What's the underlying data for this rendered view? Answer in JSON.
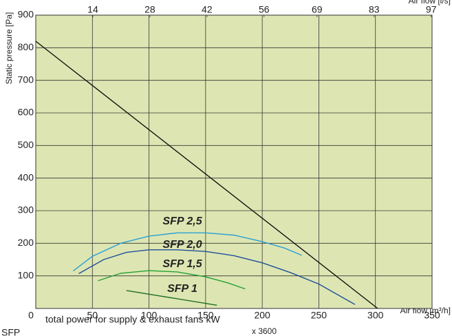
{
  "chart_data": {
    "type": "line",
    "y_label": "Static pressure [Pa]",
    "x_label": "Air flow [m³/h]",
    "x2_label": "Air flow [l/s]",
    "formula": {
      "lhs": "SFP",
      "numerator": "total power for supply & exhaust fans kW",
      "factor": "x 3600"
    },
    "xlim": [
      0,
      350
    ],
    "xticks": [
      0,
      50,
      100,
      150,
      200,
      250,
      300,
      350
    ],
    "x2lim": [
      0,
      97.22
    ],
    "x2ticks": [
      14,
      28,
      42,
      56,
      69,
      83,
      97
    ],
    "ylim": [
      0,
      900
    ],
    "yticks": [
      100,
      200,
      300,
      400,
      500,
      600,
      700,
      800,
      900
    ],
    "grid": true,
    "background": "#dde6b2",
    "series": [
      {
        "name": null,
        "color": "#111111",
        "x": [
          0,
          302
        ],
        "values": [
          820,
          0
        ]
      },
      {
        "name": "SFP 2,5",
        "color": "#2a9fd6",
        "x": [
          33,
          50,
          75,
          100,
          125,
          150,
          175,
          200,
          220,
          235
        ],
        "values": [
          115,
          160,
          200,
          222,
          232,
          232,
          225,
          205,
          185,
          163
        ]
      },
      {
        "name": "SFP 2,0",
        "color": "#1f4e9c",
        "x": [
          38,
          60,
          80,
          100,
          125,
          150,
          175,
          200,
          225,
          250,
          282
        ],
        "values": [
          107,
          150,
          172,
          180,
          180,
          175,
          162,
          140,
          110,
          75,
          12
        ]
      },
      {
        "name": "SFP 1,5",
        "color": "#22a033",
        "x": [
          55,
          75,
          100,
          125,
          150,
          170,
          185
        ],
        "values": [
          85,
          108,
          116,
          112,
          97,
          78,
          60
        ]
      },
      {
        "name": "SFP 1",
        "color": "#1f6e2a",
        "x": [
          80,
          160
        ],
        "values": [
          55,
          10
        ]
      }
    ]
  }
}
